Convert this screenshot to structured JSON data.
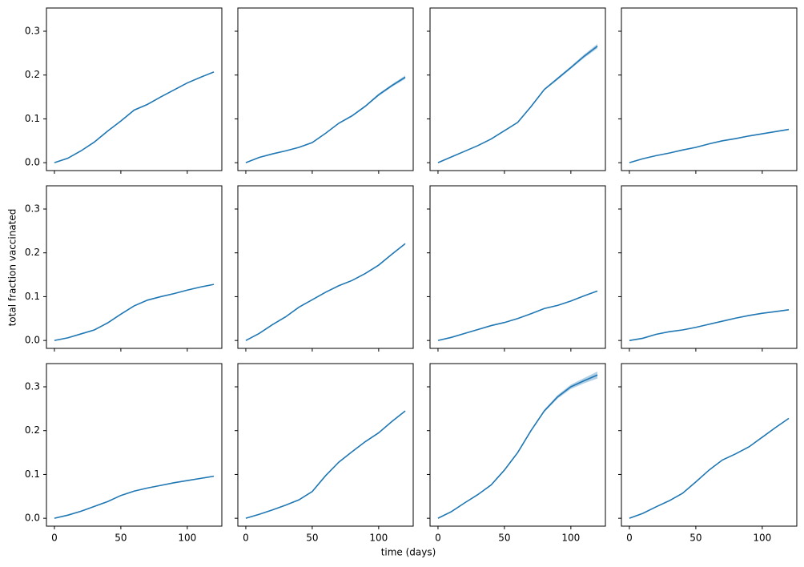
{
  "xlabel": "time (days)",
  "ylabel": "total fraction vaccinated",
  "xlim": [
    -6,
    126
  ],
  "ylim": [
    -0.018,
    0.353
  ],
  "xticks": [
    0,
    50,
    100
  ],
  "yticks": [
    {
      "value": 0,
      "label": "0.0"
    },
    0.1,
    0.2,
    0.3
  ],
  "x": [
    0,
    10,
    20,
    30,
    40,
    50,
    60,
    70,
    80,
    90,
    100,
    110,
    120
  ],
  "chart_data": [
    {
      "type": "line",
      "series": [
        {
          "color": "#1f77b4",
          "values": [
            0,
            0.01,
            0.027,
            0.047,
            0.072,
            0.095,
            0.12,
            0.133,
            0.15,
            0.166,
            0.182,
            0.195,
            0.207
          ]
        }
      ]
    },
    {
      "type": "line",
      "series": [
        {
          "color": "#1f77b4",
          "values": [
            0,
            0.012,
            0.02,
            0.027,
            0.035,
            0.046,
            0.067,
            0.09,
            0.107,
            0.129,
            0.155,
            0.176,
            0.195
          ],
          "errors": [
            0,
            0,
            0,
            0,
            0,
            0.001,
            0.001,
            0.001,
            0.002,
            0.002,
            0.003,
            0.003,
            0.004
          ]
        }
      ]
    },
    {
      "type": "line",
      "series": [
        {
          "color": "#1f77b4",
          "values": [
            0,
            0.013,
            0.026,
            0.039,
            0.054,
            0.073,
            0.092,
            0.128,
            0.167,
            0.192,
            0.217,
            0.243,
            0.266
          ],
          "errors": [
            0,
            0,
            0,
            0,
            0.001,
            0.001,
            0.001,
            0.002,
            0.002,
            0.003,
            0.003,
            0.004,
            0.005
          ]
        }
      ]
    },
    {
      "type": "line",
      "series": [
        {
          "color": "#1f77b4",
          "values": [
            0,
            0.009,
            0.016,
            0.022,
            0.029,
            0.035,
            0.043,
            0.05,
            0.055,
            0.061,
            0.066,
            0.071,
            0.076
          ]
        }
      ]
    },
    {
      "type": "line",
      "series": [
        {
          "color": "#1f77b4",
          "values": [
            0,
            0.006,
            0.015,
            0.024,
            0.04,
            0.06,
            0.079,
            0.092,
            0.1,
            0.107,
            0.115,
            0.122,
            0.128
          ]
        }
      ]
    },
    {
      "type": "line",
      "series": [
        {
          "color": "#1f77b4",
          "values": [
            0,
            0.016,
            0.036,
            0.054,
            0.076,
            0.093,
            0.11,
            0.125,
            0.137,
            0.153,
            0.172,
            0.197,
            0.221
          ]
        }
      ]
    },
    {
      "type": "line",
      "series": [
        {
          "color": "#1f77b4",
          "values": [
            0,
            0.007,
            0.016,
            0.025,
            0.034,
            0.041,
            0.05,
            0.061,
            0.073,
            0.08,
            0.09,
            0.102,
            0.113
          ]
        }
      ]
    },
    {
      "type": "line",
      "series": [
        {
          "color": "#1f77b4",
          "values": [
            0,
            0.005,
            0.014,
            0.02,
            0.024,
            0.03,
            0.037,
            0.044,
            0.051,
            0.057,
            0.062,
            0.066,
            0.07
          ]
        }
      ]
    },
    {
      "type": "line",
      "series": [
        {
          "color": "#1f77b4",
          "values": [
            0,
            0.007,
            0.016,
            0.027,
            0.038,
            0.052,
            0.062,
            0.069,
            0.075,
            0.081,
            0.086,
            0.091,
            0.096
          ]
        }
      ]
    },
    {
      "type": "line",
      "series": [
        {
          "color": "#1f77b4",
          "values": [
            0,
            0.009,
            0.019,
            0.03,
            0.042,
            0.061,
            0.097,
            0.128,
            0.152,
            0.175,
            0.195,
            0.221,
            0.245
          ]
        }
      ]
    },
    {
      "type": "line",
      "series": [
        {
          "color": "#1f77b4",
          "values": [
            0,
            0.015,
            0.035,
            0.054,
            0.076,
            0.11,
            0.15,
            0.2,
            0.245,
            0.277,
            0.3,
            0.314,
            0.327
          ],
          "errors": [
            0,
            0,
            0,
            0.001,
            0.001,
            0.001,
            0.002,
            0.002,
            0.003,
            0.004,
            0.005,
            0.006,
            0.008
          ]
        }
      ]
    },
    {
      "type": "line",
      "series": [
        {
          "color": "#1f77b4",
          "values": [
            0,
            0.011,
            0.026,
            0.04,
            0.057,
            0.083,
            0.11,
            0.133,
            0.147,
            0.163,
            0.185,
            0.207,
            0.228
          ]
        }
      ]
    }
  ]
}
